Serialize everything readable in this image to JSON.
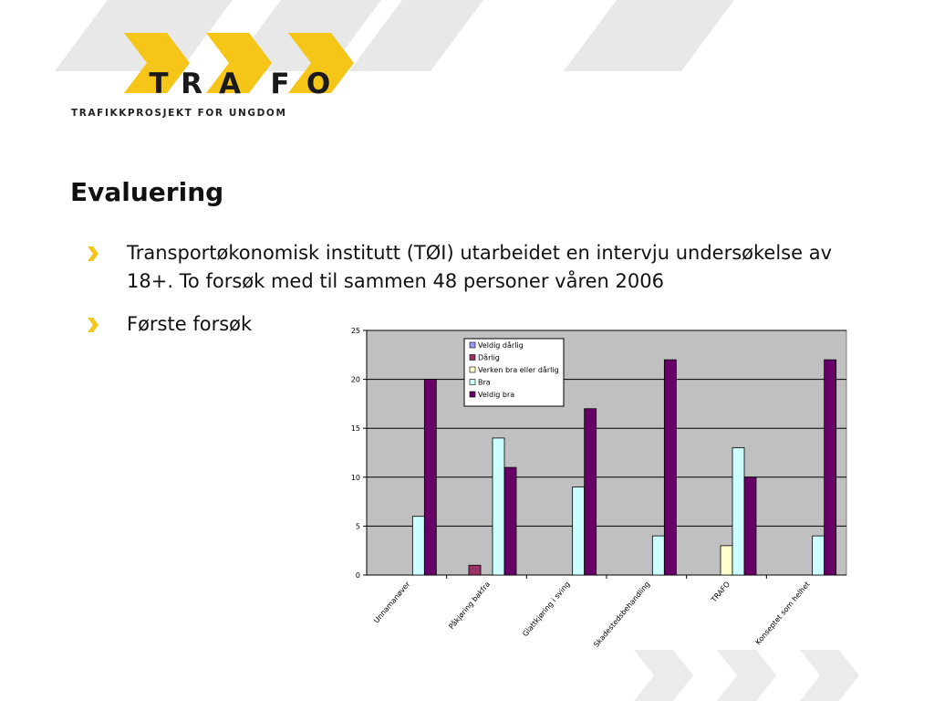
{
  "logo": {
    "wordmark": "TRAFO",
    "letters": [
      "T",
      "R",
      "A",
      "F",
      "O"
    ],
    "tagline": "TRAFIKKPROSJEKT FOR UNGDOM"
  },
  "title": "Evaluering",
  "bullets": [
    {
      "text": "Transportøkonomisk institutt (TØI) utarbeidet en intervju undersøkelse av 18+. To forsøk med til sammen 48 personer våren 2006"
    },
    {
      "text": "Første forsøk"
    }
  ],
  "colors": {
    "accent": "#F5C518",
    "deco_grey": "#E8E8E8",
    "plot_bg": "#C0C0C0"
  },
  "icons": {
    "bullet": "chevron-right-icon"
  },
  "chart_data": {
    "type": "bar",
    "title": "",
    "xlabel": "",
    "ylabel": "",
    "ylim": [
      0,
      25
    ],
    "yticks": [
      0,
      5,
      10,
      15,
      20,
      25
    ],
    "grid": true,
    "legend_position": "top-left",
    "categories": [
      "Unnamanøver",
      "Påkjøring bakfra",
      "Glattkjøring i sving",
      "Skadestedsbehandling",
      "TRAFO",
      "Konseptet som helhet"
    ],
    "series": [
      {
        "name": "Veldig dårlig",
        "color": "#9999FF",
        "values": [
          0,
          0,
          0,
          0,
          0,
          0
        ]
      },
      {
        "name": "Dårlig",
        "color": "#993366",
        "values": [
          0,
          1,
          0,
          0,
          0,
          0
        ]
      },
      {
        "name": "Verken bra eller dårlig",
        "color": "#FFFFCC",
        "values": [
          0,
          0,
          0,
          0,
          3,
          0
        ]
      },
      {
        "name": "Bra",
        "color": "#CCFFFF",
        "values": [
          6,
          14,
          9,
          4,
          13,
          4
        ]
      },
      {
        "name": "Veldig bra",
        "color": "#660066",
        "values": [
          20,
          11,
          17,
          22,
          10,
          22
        ]
      }
    ]
  }
}
